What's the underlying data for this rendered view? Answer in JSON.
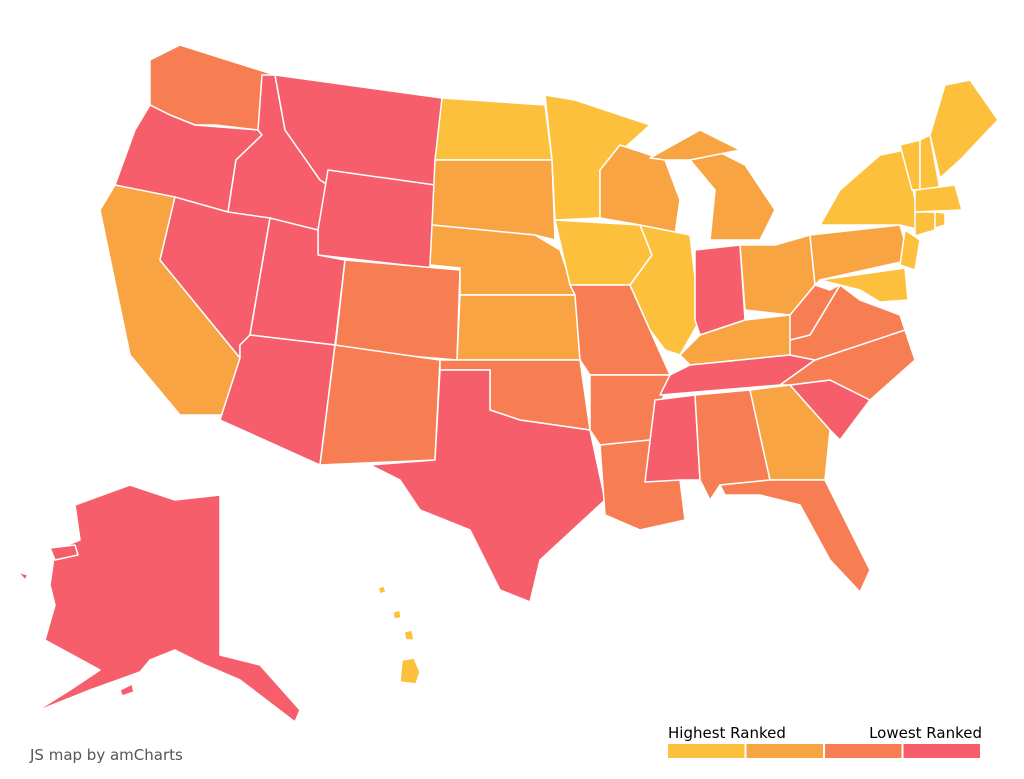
{
  "credit": "JS map by amCharts",
  "legend": {
    "high_label": "Highest Ranked",
    "low_label": "Lowest Ranked",
    "colors": [
      "#fcc03c",
      "#f9a443",
      "#f67e52",
      "#f55e6a"
    ]
  },
  "regions": [
    {
      "color": "#f67e52"
    },
    {
      "color": "#f55e6a"
    },
    {
      "color": "#f9a443"
    },
    {
      "color": "#f55e6a"
    },
    {
      "color": "#f55e6a"
    },
    {
      "color": "#f55e6a"
    },
    {
      "color": "#f55e6a"
    },
    {
      "color": "#f55e6a"
    },
    {
      "color": "#f55e6a"
    },
    {
      "color": "#f67e52"
    },
    {
      "color": "#f67e52"
    },
    {
      "color": "#fcc03c"
    },
    {
      "color": "#f9a443"
    },
    {
      "color": "#f9a443"
    },
    {
      "color": "#f9a443"
    },
    {
      "color": "#f67e52"
    },
    {
      "color": "#f55e6a"
    },
    {
      "color": "#fcc03c"
    },
    {
      "color": "#fcc03c"
    },
    {
      "color": "#f67e52"
    },
    {
      "color": "#f67e52"
    },
    {
      "color": "#f67e52"
    },
    {
      "color": "#f9a443"
    },
    {
      "color": "#fcc03c"
    },
    {
      "color": "#f9a443"
    },
    {
      "color": "#f55e6a"
    },
    {
      "color": "#f9a443"
    },
    {
      "color": "#f9a443"
    },
    {
      "color": "#f55e6a"
    },
    {
      "color": "#f55e6a"
    },
    {
      "color": "#f67e52"
    },
    {
      "color": "#f9a443"
    },
    {
      "color": "#f67e52"
    },
    {
      "color": "#f55e6a"
    },
    {
      "color": "#f67e52"
    },
    {
      "color": "#f67e52"
    },
    {
      "color": "#f67e52"
    },
    {
      "color": "#f9a443"
    },
    {
      "color": "#fcc03c"
    },
    {
      "color": "#fcc03c"
    },
    {
      "color": "#fcc03c"
    },
    {
      "color": "#fcc03c"
    },
    {
      "color": "#fcc03c"
    },
    {
      "color": "#fcc03c"
    },
    {
      "color": "#fcc03c"
    },
    {
      "color": "#fcc03c"
    },
    {
      "color": "#fcc03c"
    },
    {
      "color": "#f55e6a"
    },
    {
      "color": "#fcc03c"
    }
  ]
}
